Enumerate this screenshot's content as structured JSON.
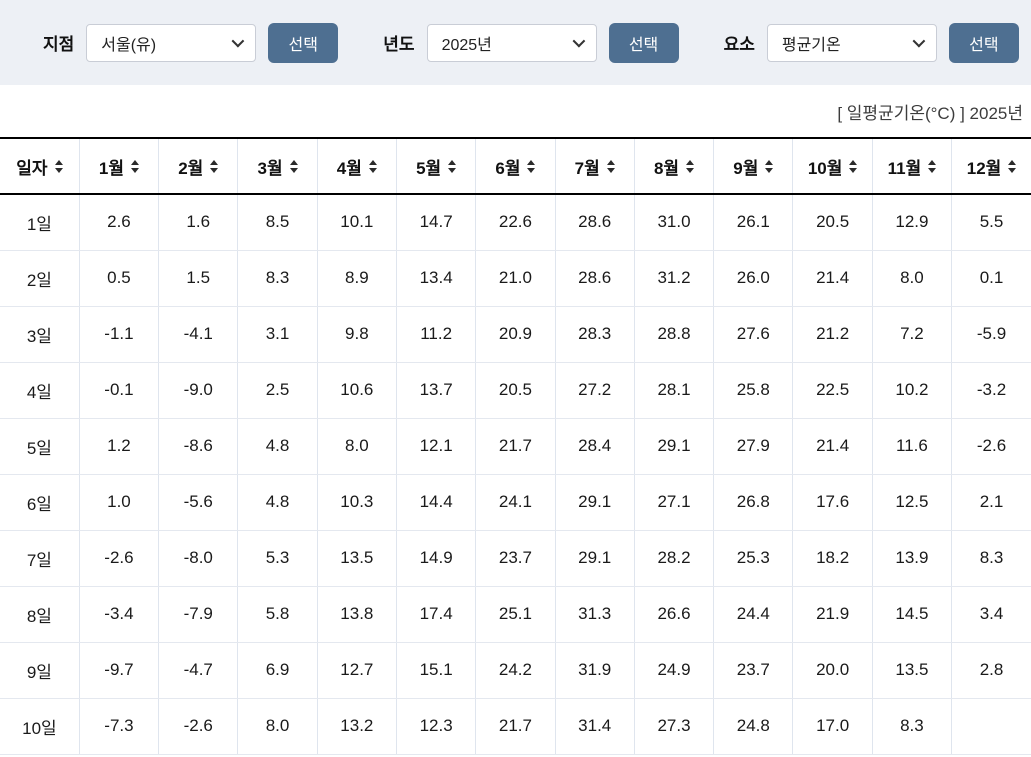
{
  "controls": {
    "station": {
      "label": "지점",
      "value": "서울(유)",
      "button_label": "선택"
    },
    "year": {
      "label": "년도",
      "value": "2025년",
      "button_label": "선택"
    },
    "element": {
      "label": "요소",
      "value": "평균기온",
      "button_label": "선택"
    }
  },
  "caption": "[ 일평균기온(°C) ] 2025년",
  "table": {
    "columns": [
      "일자",
      "1월",
      "2월",
      "3월",
      "4월",
      "5월",
      "6월",
      "7월",
      "8월",
      "9월",
      "10월",
      "11월",
      "12월"
    ],
    "rows": [
      {
        "day": "1일",
        "values": [
          "2.6",
          "1.6",
          "8.5",
          "10.1",
          "14.7",
          "22.6",
          "28.6",
          "31.0",
          "26.1",
          "20.5",
          "12.9",
          "5.5"
        ]
      },
      {
        "day": "2일",
        "values": [
          "0.5",
          "1.5",
          "8.3",
          "8.9",
          "13.4",
          "21.0",
          "28.6",
          "31.2",
          "26.0",
          "21.4",
          "8.0",
          "0.1"
        ]
      },
      {
        "day": "3일",
        "values": [
          "-1.1",
          "-4.1",
          "3.1",
          "9.8",
          "11.2",
          "20.9",
          "28.3",
          "28.8",
          "27.6",
          "21.2",
          "7.2",
          "-5.9"
        ]
      },
      {
        "day": "4일",
        "values": [
          "-0.1",
          "-9.0",
          "2.5",
          "10.6",
          "13.7",
          "20.5",
          "27.2",
          "28.1",
          "25.8",
          "22.5",
          "10.2",
          "-3.2"
        ]
      },
      {
        "day": "5일",
        "values": [
          "1.2",
          "-8.6",
          "4.8",
          "8.0",
          "12.1",
          "21.7",
          "28.4",
          "29.1",
          "27.9",
          "21.4",
          "11.6",
          "-2.6"
        ]
      },
      {
        "day": "6일",
        "values": [
          "1.0",
          "-5.6",
          "4.8",
          "10.3",
          "14.4",
          "24.1",
          "29.1",
          "27.1",
          "26.8",
          "17.6",
          "12.5",
          "2.1"
        ]
      },
      {
        "day": "7일",
        "values": [
          "-2.6",
          "-8.0",
          "5.3",
          "13.5",
          "14.9",
          "23.7",
          "29.1",
          "28.2",
          "25.3",
          "18.2",
          "13.9",
          "8.3"
        ]
      },
      {
        "day": "8일",
        "values": [
          "-3.4",
          "-7.9",
          "5.8",
          "13.8",
          "17.4",
          "25.1",
          "31.3",
          "26.6",
          "24.4",
          "21.9",
          "14.5",
          "3.4"
        ]
      },
      {
        "day": "9일",
        "values": [
          "-9.7",
          "-4.7",
          "6.9",
          "12.7",
          "15.1",
          "24.2",
          "31.9",
          "24.9",
          "23.7",
          "20.0",
          "13.5",
          "2.8"
        ]
      },
      {
        "day": "10일",
        "values": [
          "-7.3",
          "-2.6",
          "8.0",
          "13.2",
          "12.3",
          "21.7",
          "31.4",
          "27.3",
          "24.8",
          "17.0",
          "8.3",
          ""
        ]
      }
    ]
  },
  "colors": {
    "accent_button": "#4e6f91",
    "topbar_bg": "#edf0f5",
    "table_heavy_border": "#000000",
    "table_light_border": "#dfe5ee"
  }
}
